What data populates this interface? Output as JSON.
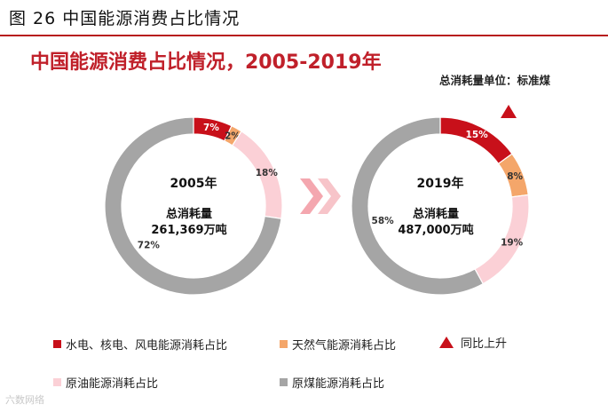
{
  "figure_title": "图 26 中国能源消费占比情况",
  "chart_data": {
    "type": "pie",
    "title": "中国能源消费占比情况，2005-2019年",
    "unit_note": "总消耗量单位：标准煤",
    "categories": [
      "水电、核电、风电能源消耗占比",
      "天然气能源消耗占比",
      "原油能源消耗占比",
      "原煤能源消耗占比"
    ],
    "colors": [
      "#c8101a",
      "#f4a66a",
      "#fbd0d6",
      "#a5a5a5"
    ],
    "rise_marker": {
      "label": "同比上升",
      "color": "#c8101a"
    },
    "donuts": [
      {
        "year_label": "2005年",
        "total_label": "总消耗量",
        "total_value": "261,369万吨",
        "values": [
          7,
          2,
          18,
          72
        ],
        "value_labels": [
          "7%",
          "2%",
          "18%",
          "72%"
        ]
      },
      {
        "year_label": "2019年",
        "total_label": "总消耗量",
        "total_value": "487,000万吨",
        "values": [
          15,
          8,
          19,
          58
        ],
        "value_labels": [
          "15%",
          "8%",
          "19%",
          "58%"
        ]
      }
    ]
  },
  "watermark": "六数网络"
}
